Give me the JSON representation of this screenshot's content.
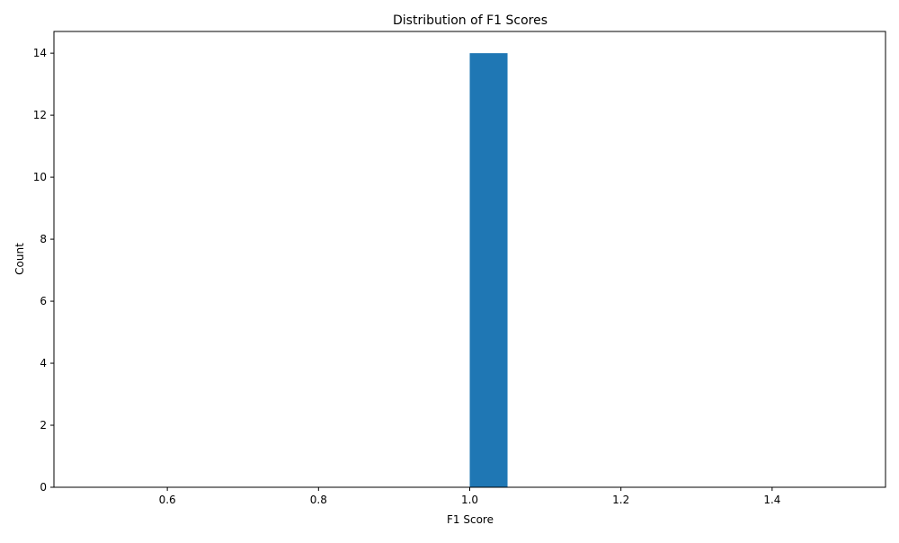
{
  "chart_data": {
    "type": "bar",
    "title": "Distribution of F1 Scores",
    "xlabel": "F1 Score",
    "ylabel": "Count",
    "xlim": [
      0.45,
      1.55
    ],
    "ylim": [
      0,
      14.7
    ],
    "x_ticks": [
      0.6,
      0.8,
      1.0,
      1.2,
      1.4
    ],
    "x_tick_labels": [
      "0.6",
      "0.8",
      "1.0",
      "1.2",
      "1.4"
    ],
    "y_ticks": [
      0,
      2,
      4,
      6,
      8,
      10,
      12,
      14
    ],
    "y_tick_labels": [
      "0",
      "2",
      "4",
      "6",
      "8",
      "10",
      "12",
      "14"
    ],
    "bins": [
      {
        "start": 1.0,
        "end": 1.05,
        "count": 14
      }
    ],
    "grid": false,
    "bar_color": "#1f77b4"
  }
}
